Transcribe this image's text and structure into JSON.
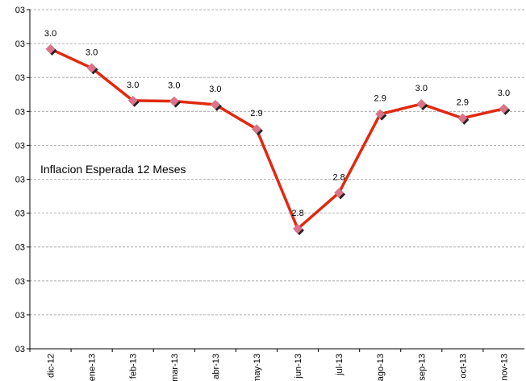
{
  "chart_data": {
    "type": "line",
    "annotation": "Inflacion Esperada 12 Meses",
    "categories": [
      "dic-12",
      "ene-13",
      "feb-13",
      "mar-13",
      "abr-13",
      "may-13",
      "jun-13",
      "jul-13",
      "ago-13",
      "sep-13",
      "oct-13",
      "nov-13"
    ],
    "series": [
      {
        "name": "Inflacion Esperada 12 Meses",
        "color": "#e1290f",
        "marker_color": "#d9748a",
        "values": [
          3.042,
          3.014,
          2.966,
          2.965,
          2.96,
          2.924,
          2.777,
          2.83,
          2.946,
          2.961,
          2.94,
          2.954
        ],
        "value_labels": [
          "3.0",
          "3.0",
          "3.0",
          "3.0",
          "3.0",
          "2.9",
          "2.8",
          "2.8",
          "2.9",
          "3.0",
          "2.9",
          "3.0"
        ]
      }
    ],
    "ylim": [
      2.6,
      3.1
    ],
    "yticks": [
      {
        "value": 2.6,
        "label": "03"
      },
      {
        "value": 2.65,
        "label": "03"
      },
      {
        "value": 2.7,
        "label": "03"
      },
      {
        "value": 2.75,
        "label": "03"
      },
      {
        "value": 2.8,
        "label": "03"
      },
      {
        "value": 2.85,
        "label": "03"
      },
      {
        "value": 2.9,
        "label": "03"
      },
      {
        "value": 2.95,
        "label": "03"
      },
      {
        "value": 3.0,
        "label": "03"
      },
      {
        "value": 3.05,
        "label": "03"
      },
      {
        "value": 3.1,
        "label": "03"
      }
    ],
    "grid": true
  }
}
